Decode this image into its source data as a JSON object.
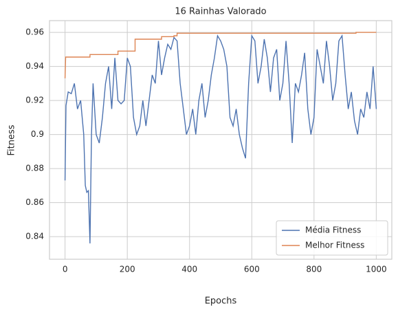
{
  "chart_data": {
    "type": "line",
    "title": "16 Rainhas Valorado",
    "x_label": "Epochs",
    "y_label": "Fitness",
    "xlim": [
      -50,
      1050
    ],
    "xticks": [
      0,
      200,
      400,
      600,
      800,
      1000
    ],
    "ylim": [
      0.8267,
      0.9669
    ],
    "yticks": [
      0.84,
      0.86,
      0.88,
      0.9,
      0.92,
      0.94,
      0.96
    ],
    "grid": true,
    "legend": "lower right",
    "series": [
      {
        "name": "Média Fitness",
        "color": "#4c72b0",
        "x": [
          0,
          3,
          10,
          20,
          30,
          40,
          50,
          60,
          65,
          70,
          75,
          80,
          85,
          90,
          100,
          110,
          120,
          130,
          140,
          150,
          160,
          170,
          180,
          190,
          200,
          210,
          220,
          230,
          240,
          250,
          260,
          270,
          280,
          290,
          300,
          310,
          320,
          330,
          340,
          350,
          360,
          370,
          380,
          390,
          400,
          410,
          420,
          430,
          440,
          450,
          460,
          470,
          480,
          490,
          500,
          510,
          520,
          530,
          540,
          550,
          560,
          570,
          580,
          590,
          600,
          610,
          620,
          630,
          640,
          650,
          660,
          670,
          680,
          690,
          700,
          710,
          720,
          730,
          740,
          750,
          760,
          770,
          780,
          790,
          800,
          810,
          820,
          830,
          840,
          850,
          860,
          870,
          880,
          890,
          900,
          910,
          920,
          930,
          940,
          950,
          960,
          970,
          980,
          990,
          1000
        ],
        "values": [
          0.873,
          0.917,
          0.925,
          0.924,
          0.93,
          0.915,
          0.92,
          0.9,
          0.87,
          0.866,
          0.867,
          0.836,
          0.9,
          0.93,
          0.9,
          0.895,
          0.91,
          0.93,
          0.94,
          0.915,
          0.945,
          0.92,
          0.918,
          0.92,
          0.945,
          0.94,
          0.91,
          0.9,
          0.905,
          0.92,
          0.905,
          0.92,
          0.935,
          0.93,
          0.955,
          0.935,
          0.945,
          0.953,
          0.95,
          0.957,
          0.955,
          0.93,
          0.915,
          0.9,
          0.905,
          0.915,
          0.9,
          0.92,
          0.93,
          0.91,
          0.92,
          0.935,
          0.945,
          0.958,
          0.955,
          0.95,
          0.94,
          0.91,
          0.905,
          0.915,
          0.9,
          0.892,
          0.886,
          0.93,
          0.958,
          0.955,
          0.93,
          0.94,
          0.956,
          0.945,
          0.925,
          0.945,
          0.95,
          0.92,
          0.93,
          0.955,
          0.93,
          0.895,
          0.93,
          0.925,
          0.935,
          0.948,
          0.915,
          0.9,
          0.91,
          0.95,
          0.94,
          0.93,
          0.955,
          0.94,
          0.92,
          0.93,
          0.955,
          0.958,
          0.935,
          0.915,
          0.925,
          0.908,
          0.9,
          0.915,
          0.91,
          0.925,
          0.915,
          0.94,
          0.915
        ]
      },
      {
        "name": "Melhor Fitness",
        "color": "#dd8452",
        "x": [
          0,
          2,
          80,
          80,
          170,
          170,
          225,
          225,
          310,
          310,
          350,
          350,
          360,
          360,
          935,
          935,
          1000
        ],
        "values": [
          0.933,
          0.9455,
          0.9455,
          0.947,
          0.947,
          0.949,
          0.949,
          0.956,
          0.956,
          0.9575,
          0.9575,
          0.958,
          0.958,
          0.9595,
          0.9595,
          0.96,
          0.96
        ]
      }
    ]
  }
}
